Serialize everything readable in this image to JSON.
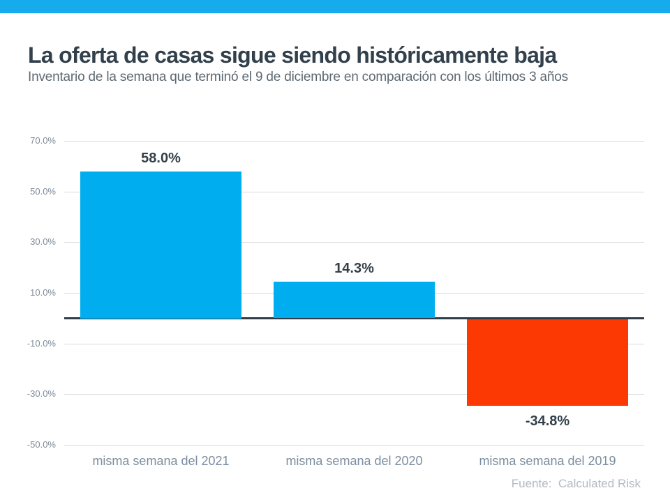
{
  "page": {
    "title": "La oferta de casas sigue siendo históricamente baja",
    "subtitle": "Inventario de la semana que terminó el 9 de diciembre en comparación con los últimos 3 años",
    "source": "Fuente:  Calculated Risk"
  },
  "colors": {
    "top_bar": "#16abec",
    "bar_positive": "#00aeef",
    "bar_negative": "#fc3903",
    "gridline": "#d9d9d9",
    "zero_line": "#2f3c48",
    "title_text": "#32404c",
    "subtitle_text": "#5d6972",
    "ytick_text": "#7d8a98",
    "xlabel_text": "#7b8da0",
    "data_label_text": "#333f48",
    "source_text": "#b2bac2"
  },
  "chart_data": {
    "type": "bar",
    "title": "La oferta de casas sigue siendo históricamente baja",
    "subtitle": "Inventario de la semana que terminó el 9 de diciembre en comparación con los últimos 3 años",
    "categories": [
      "misma semana del 2021",
      "misma semana del 2020",
      "misma semana del 2019"
    ],
    "values": [
      58.0,
      14.3,
      -34.8
    ],
    "data_labels": [
      "58.0%",
      "14.3%",
      "-34.8%"
    ],
    "bar_colors": [
      "#00aeef",
      "#00aeef",
      "#fc3903"
    ],
    "yticks": [
      70,
      50,
      30,
      10,
      -10,
      -30,
      -50
    ],
    "ytick_labels": [
      "70.0%",
      "50.0%",
      "30.0%",
      "10.0%",
      "-10.0%",
      "-30.0%",
      "-50.0%"
    ],
    "ylim": [
      -50,
      70
    ],
    "grid": true,
    "legend": false,
    "xlabel": "",
    "ylabel": "",
    "annotation": "Fuente:  Calculated Risk"
  }
}
